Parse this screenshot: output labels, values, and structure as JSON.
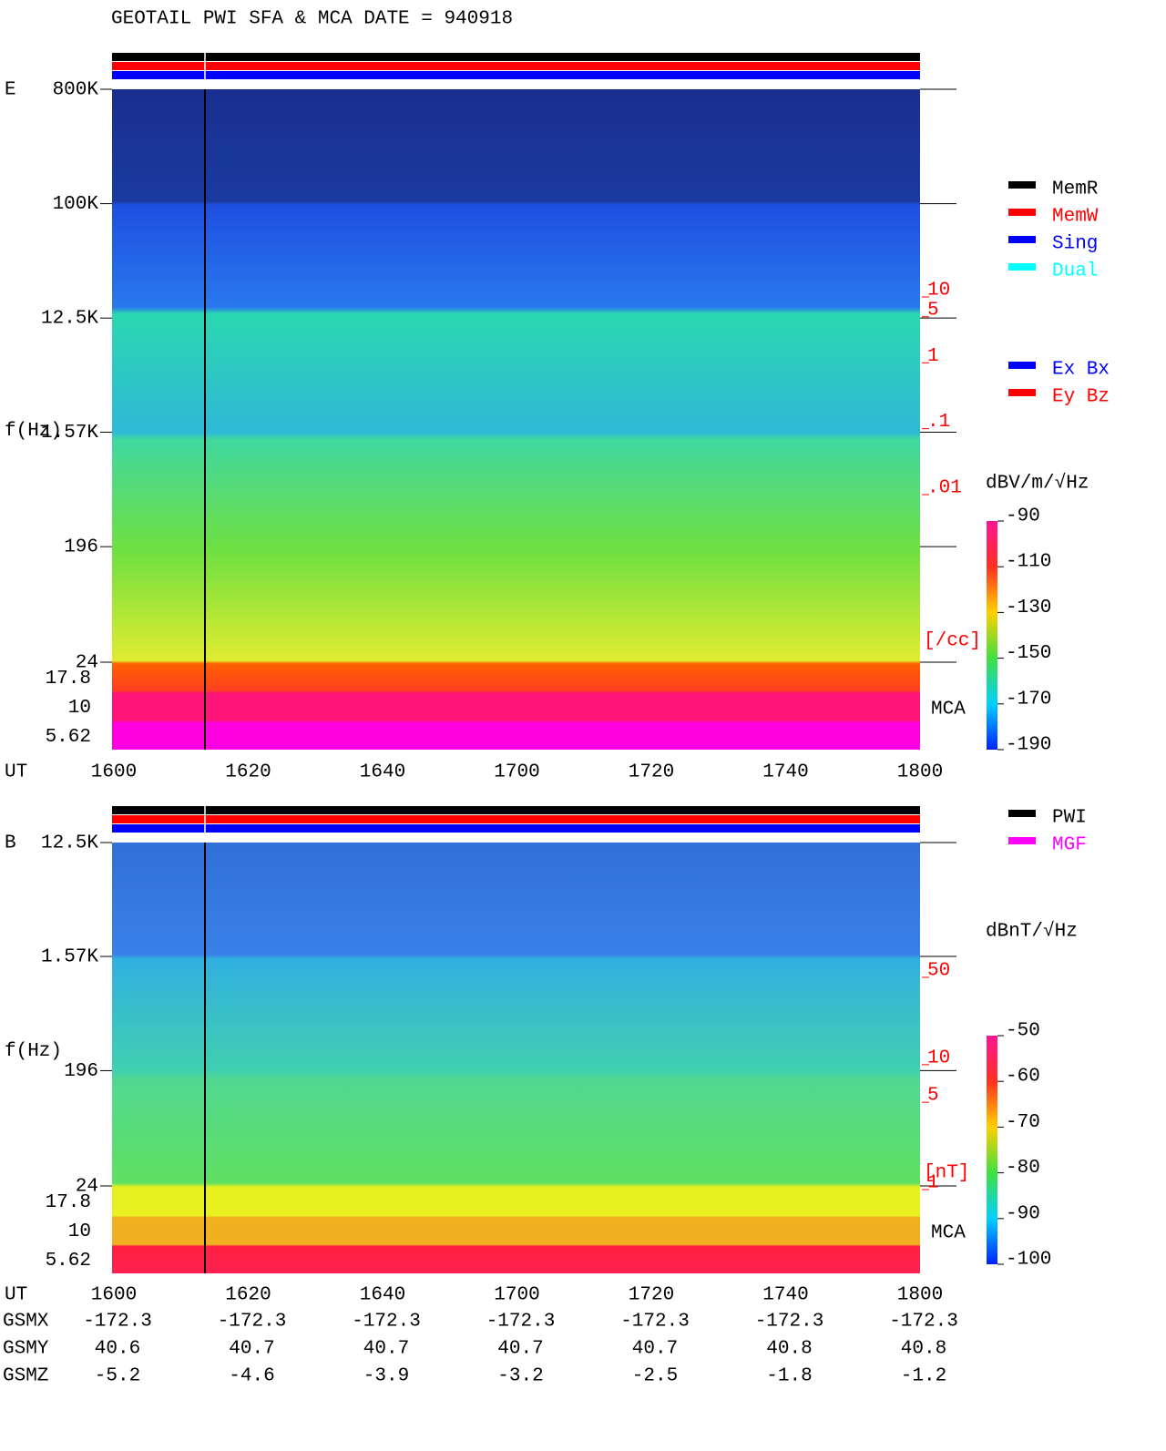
{
  "title": "GEOTAIL  PWI SFA & MCA   DATE = 940918",
  "chart_data": [
    {
      "type": "spectrogram",
      "panel_label": "E",
      "y_label": "f(Hz)",
      "x_label": "UT",
      "x_labels": [
        "1600",
        "1620",
        "1640",
        "1700",
        "1720",
        "1740",
        "1800"
      ],
      "log_y": true,
      "ylim": [
        24,
        800000
      ],
      "yticks": [
        {
          "value": 800000,
          "label": "800K"
        },
        {
          "value": 100000,
          "label": "100K"
        },
        {
          "value": 12500,
          "label": "12.5K"
        },
        {
          "value": 1570,
          "label": "1.57K"
        },
        196,
        24
      ],
      "mca_channels": [
        17.8,
        10,
        5.62
      ],
      "mca_label": "MCA",
      "colorbar_label": "dBV/m/√Hz",
      "clim": [
        -190,
        -90
      ],
      "cticks": [
        -90,
        -110,
        -130,
        -150,
        -170,
        -190
      ],
      "y2ticks": [
        10,
        5,
        1,
        {
          "value": 0.1,
          "label": ".1"
        },
        {
          "value": 0.01,
          "label": ".01"
        }
      ],
      "y2_unit": "[/cc]",
      "y2_color": "#ff0000",
      "legend": [
        {
          "name": "MemR",
          "color": "#000000"
        },
        {
          "name": "MemW",
          "color": "#ff0000"
        },
        {
          "name": "Sing",
          "color": "#0000ff"
        },
        {
          "name": "Dual",
          "color": "#00ffff"
        }
      ],
      "legend2": [
        {
          "name": "Ex Bx",
          "color": "#0000ff"
        },
        {
          "name": "Ey Bz",
          "color": "#ff0000"
        }
      ]
    },
    {
      "type": "spectrogram",
      "panel_label": "B",
      "y_label": "f(Hz)",
      "x_label": "UT",
      "x_labels": [
        "1600",
        "1620",
        "1640",
        "1700",
        "1720",
        "1740",
        "1800"
      ],
      "log_y": true,
      "ylim": [
        24,
        12500
      ],
      "yticks": [
        {
          "value": 12500,
          "label": "12.5K"
        },
        {
          "value": 1570,
          "label": "1.57K"
        },
        196,
        24
      ],
      "mca_channels": [
        17.8,
        10,
        5.62
      ],
      "mca_label": "MCA",
      "colorbar_label": "dBnT/√Hz",
      "clim": [
        -100,
        -50
      ],
      "cticks": [
        -50,
        -60,
        -70,
        -80,
        -90,
        -100
      ],
      "y2ticks": [
        50,
        10,
        5,
        1
      ],
      "y2_unit": "[nT]",
      "y2_color": "#ff0000",
      "legend": [
        {
          "name": "PWI",
          "color": "#000000"
        },
        {
          "name": "MGF",
          "color": "#ff00ff"
        }
      ]
    }
  ],
  "orbit": [
    {
      "name": "GSMX",
      "values": [
        -172.3,
        -172.3,
        -172.3,
        -172.3,
        -172.3,
        -172.3,
        -172.3
      ]
    },
    {
      "name": "GSMY",
      "values": [
        40.6,
        40.7,
        40.7,
        40.7,
        40.7,
        40.8,
        40.8
      ]
    },
    {
      "name": "GSMZ",
      "values": [
        -5.2,
        -4.6,
        -3.9,
        -3.2,
        -2.5,
        -1.8,
        -1.2
      ]
    }
  ]
}
